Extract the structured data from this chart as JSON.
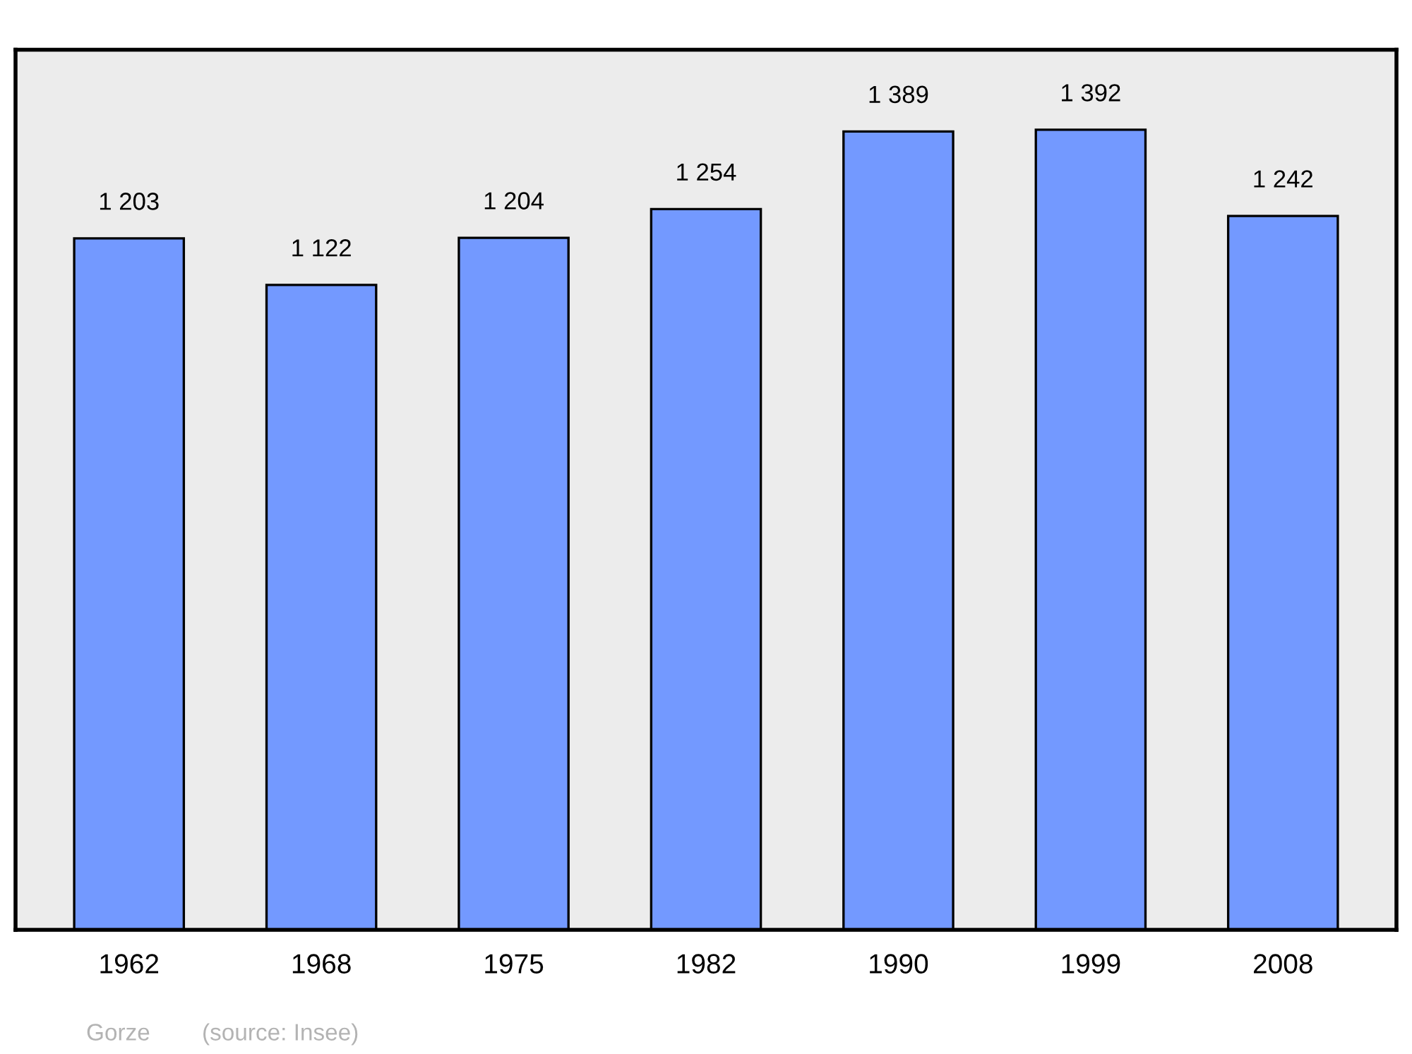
{
  "chart_data": {
    "type": "bar",
    "categories": [
      "1962",
      "1968",
      "1975",
      "1982",
      "1990",
      "1999",
      "2008"
    ],
    "values": [
      1203,
      1122,
      1204,
      1254,
      1389,
      1392,
      1242
    ],
    "value_labels": [
      "1 203",
      "1 122",
      "1 204",
      "1 254",
      "1 389",
      "1 392",
      "1 242"
    ],
    "color": "#7399ff",
    "grid": false,
    "legend": false,
    "tick_labels": "x",
    "annotations": [
      "Gorze",
      "(source: Insee)"
    ]
  }
}
